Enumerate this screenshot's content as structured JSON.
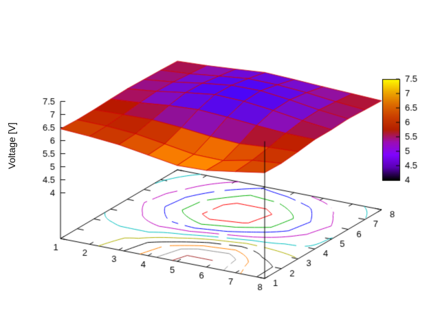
{
  "figure": {
    "background": "#ffffff"
  },
  "chart_data": {
    "type": "surface3d_with_base_contours",
    "zlabel": "Voltage [V]",
    "x": [
      1,
      2,
      3,
      4,
      5,
      6,
      7,
      8
    ],
    "y": [
      1,
      2,
      3,
      4,
      5,
      6,
      7,
      8
    ],
    "z": [
      [
        6.45,
        6.38,
        6.28,
        6.1,
        5.92,
        5.95,
        6.12,
        6.3
      ],
      [
        6.42,
        6.4,
        6.32,
        6.15,
        5.97,
        5.95,
        6.18,
        6.28
      ],
      [
        6.43,
        6.46,
        6.48,
        6.4,
        6.28,
        6.22,
        6.3,
        6.35
      ],
      [
        6.46,
        6.54,
        6.65,
        6.71,
        6.64,
        6.54,
        6.46,
        6.44
      ],
      [
        6.48,
        6.6,
        6.77,
        6.91,
        6.87,
        6.74,
        6.57,
        6.44
      ],
      [
        6.46,
        6.58,
        6.75,
        6.89,
        6.9,
        6.77,
        6.6,
        6.48
      ],
      [
        6.44,
        6.52,
        6.65,
        6.77,
        6.75,
        6.67,
        6.54,
        6.45
      ],
      [
        6.41,
        6.46,
        6.54,
        6.63,
        6.58,
        6.52,
        6.47,
        6.42
      ]
    ],
    "surface_quad_colors": [
      [
        "#d04000",
        "#cc3800",
        "#e05400",
        "#f87c00",
        "#ff8800",
        "#f06400",
        "#d84800"
      ],
      [
        "#c42800",
        "#c02400",
        "#cc3400",
        "#e85e00",
        "#f06c00",
        "#e05000",
        "#cc3400"
      ],
      [
        "#b81800",
        "#a81048",
        "#901098",
        "#8c0fb0",
        "#980f90",
        "#b01430",
        "#c02000"
      ],
      [
        "#a81060",
        "#800dc0",
        "#6209e4",
        "#5807ec",
        "#6409e0",
        "#8a0eb8",
        "#a81248"
      ],
      [
        "#980f88",
        "#700bd4",
        "#5406f2",
        "#4c05f8",
        "#5806ee",
        "#760cd0",
        "#9a1080"
      ],
      [
        "#9c1078",
        "#740cd0",
        "#5807ee",
        "#5206f4",
        "#6008e8",
        "#7e0dc4",
        "#a01168"
      ],
      [
        "#a81250",
        "#8c0fb0",
        "#6e0ad8",
        "#6809de",
        "#780cce",
        "#9210a0",
        "#b01438"
      ]
    ],
    "mesh_color": "#d00000",
    "axes": {
      "xtick_labels": [
        "1",
        "2",
        "3",
        "4",
        "5",
        "6",
        "7",
        "8"
      ],
      "ytick_labels": [
        "1",
        "2",
        "3",
        "4",
        "5",
        "6",
        "7",
        "8"
      ],
      "ztick_values": [
        4,
        4.5,
        5,
        5.5,
        6,
        6.5,
        7,
        7.5
      ],
      "ztick_labels": [
        "4",
        "4.5",
        "5",
        "5.5",
        "6",
        "6.5",
        "7",
        "7.5"
      ],
      "zrange": [
        4,
        7.5
      ]
    },
    "colorbar": {
      "min": 4,
      "max": 7.5,
      "tick_values": [
        4,
        4.5,
        5,
        5.5,
        6,
        6.5,
        7,
        7.5
      ],
      "tick_labels": [
        "4",
        "4.5",
        "5",
        "5.5",
        "6",
        "6.5",
        "7",
        "7.5"
      ],
      "palette": [
        {
          "t": 0.0,
          "c": "#000000"
        },
        {
          "t": 0.125,
          "c": "#5a00b4"
        },
        {
          "t": 0.25,
          "c": "#8004ff"
        },
        {
          "t": 0.375,
          "c": "#9c0db4"
        },
        {
          "t": 0.5,
          "c": "#b42000"
        },
        {
          "t": 0.625,
          "c": "#ca3e00"
        },
        {
          "t": 0.75,
          "c": "#dd6c00"
        },
        {
          "t": 0.875,
          "c": "#efab00"
        },
        {
          "t": 1.0,
          "c": "#ffff00"
        }
      ]
    },
    "contours": {
      "levels": [
        6.85,
        6.75,
        6.65,
        6.55,
        6.45,
        6.35,
        6.25,
        6.15,
        6.05,
        5.95
      ],
      "colors": [
        "#ff0000",
        "#00b000",
        "#0000ff",
        "#c000c0",
        "#00c0c0",
        "#b0b000",
        "#000000",
        "#ff8000",
        "#909090",
        "#a52a2a"
      ]
    }
  }
}
